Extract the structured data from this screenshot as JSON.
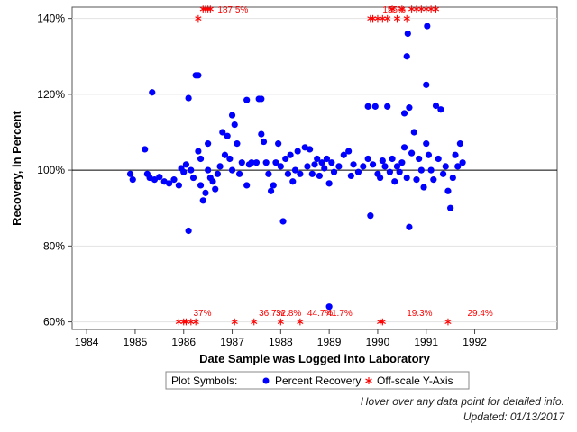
{
  "chart_data": {
    "type": "scatter",
    "title": "",
    "xlabel": "Date Sample was Logged into Laboratory",
    "ylabel": "Recovery, in Percent",
    "xlim": [
      1983.7,
      1993.7
    ],
    "ylim": [
      58,
      143
    ],
    "x_ticks": [
      "1984",
      "1985",
      "1986",
      "1987",
      "1988",
      "1989",
      "1990",
      "1991",
      "1992"
    ],
    "y_ticks": [
      "60%",
      "80%",
      "100%",
      "120%",
      "140%"
    ],
    "reference_line_y": 100,
    "grid": "horizontal",
    "legend_position": "bottom-center",
    "legend": {
      "title": "Plot Symbols:",
      "entries": [
        {
          "label": "Percent Recovery",
          "symbol": "filled-circle",
          "color": "#0000ff"
        },
        {
          "label": "Off-scale Y-Axis",
          "symbol": "asterisk",
          "color": "#ff0000"
        }
      ]
    },
    "series": [
      {
        "name": "Percent Recovery",
        "color": "#0000ff",
        "points": [
          [
            1984.9,
            99
          ],
          [
            1984.95,
            97.5
          ],
          [
            1985.2,
            105.5
          ],
          [
            1985.35,
            120.5
          ],
          [
            1985.25,
            99
          ],
          [
            1985.3,
            98
          ],
          [
            1985.4,
            97.5
          ],
          [
            1985.5,
            98.2
          ],
          [
            1985.6,
            97
          ],
          [
            1985.7,
            96.5
          ],
          [
            1985.8,
            97.5
          ],
          [
            1985.9,
            96
          ],
          [
            1985.95,
            100.5
          ],
          [
            1986.0,
            99.5
          ],
          [
            1986.05,
            101.5
          ],
          [
            1986.1,
            84
          ],
          [
            1986.1,
            119
          ],
          [
            1986.15,
            100
          ],
          [
            1986.2,
            98
          ],
          [
            1986.25,
            125
          ],
          [
            1986.3,
            125
          ],
          [
            1986.3,
            105
          ],
          [
            1986.35,
            103
          ],
          [
            1986.35,
            96
          ],
          [
            1986.4,
            92
          ],
          [
            1986.45,
            94
          ],
          [
            1986.5,
            100
          ],
          [
            1986.5,
            107
          ],
          [
            1986.55,
            98
          ],
          [
            1986.6,
            97
          ],
          [
            1986.65,
            95
          ],
          [
            1986.7,
            99
          ],
          [
            1986.75,
            101
          ],
          [
            1986.8,
            110
          ],
          [
            1986.85,
            104
          ],
          [
            1986.9,
            109
          ],
          [
            1986.95,
            103
          ],
          [
            1987.0,
            100
          ],
          [
            1987.0,
            114.5
          ],
          [
            1987.05,
            112
          ],
          [
            1987.1,
            107
          ],
          [
            1987.15,
            99
          ],
          [
            1987.2,
            102
          ],
          [
            1987.3,
            96
          ],
          [
            1987.3,
            118.5
          ],
          [
            1987.35,
            101.5
          ],
          [
            1987.4,
            102
          ],
          [
            1987.5,
            102
          ],
          [
            1987.55,
            118.8
          ],
          [
            1987.6,
            118.8
          ],
          [
            1987.6,
            109.5
          ],
          [
            1987.65,
            107.5
          ],
          [
            1987.7,
            102
          ],
          [
            1987.75,
            99
          ],
          [
            1987.8,
            94.5
          ],
          [
            1987.85,
            96
          ],
          [
            1987.9,
            102
          ],
          [
            1987.95,
            107
          ],
          [
            1988.0,
            101
          ],
          [
            1988.05,
            86.5
          ],
          [
            1988.1,
            103
          ],
          [
            1988.15,
            99
          ],
          [
            1988.2,
            104
          ],
          [
            1988.25,
            97
          ],
          [
            1988.3,
            100
          ],
          [
            1988.35,
            105
          ],
          [
            1988.4,
            99
          ],
          [
            1988.5,
            106
          ],
          [
            1988.55,
            101
          ],
          [
            1988.6,
            105.5
          ],
          [
            1988.65,
            99
          ],
          [
            1988.7,
            101.5
          ],
          [
            1988.75,
            103
          ],
          [
            1988.8,
            98.5
          ],
          [
            1988.85,
            102
          ],
          [
            1988.9,
            100.5
          ],
          [
            1988.95,
            103
          ],
          [
            1989.0,
            96.5
          ],
          [
            1989.0,
            64
          ],
          [
            1989.05,
            102
          ],
          [
            1989.1,
            99.5
          ],
          [
            1989.2,
            101
          ],
          [
            1989.3,
            104
          ],
          [
            1989.4,
            105
          ],
          [
            1989.45,
            98.5
          ],
          [
            1989.5,
            101.5
          ],
          [
            1989.6,
            99.5
          ],
          [
            1989.7,
            101
          ],
          [
            1989.8,
            103
          ],
          [
            1989.8,
            116.8
          ],
          [
            1989.85,
            88
          ],
          [
            1989.9,
            101.5
          ],
          [
            1989.95,
            116.8
          ],
          [
            1990.0,
            99
          ],
          [
            1990.05,
            98
          ],
          [
            1990.1,
            102.5
          ],
          [
            1990.15,
            101
          ],
          [
            1990.2,
            116.8
          ],
          [
            1990.25,
            99.5
          ],
          [
            1990.3,
            103
          ],
          [
            1990.35,
            97
          ],
          [
            1990.4,
            101
          ],
          [
            1990.45,
            99.5
          ],
          [
            1990.5,
            102
          ],
          [
            1990.55,
            115
          ],
          [
            1990.55,
            106
          ],
          [
            1990.6,
            98
          ],
          [
            1990.6,
            130
          ],
          [
            1990.62,
            136
          ],
          [
            1990.65,
            116.5
          ],
          [
            1990.65,
            85
          ],
          [
            1990.7,
            104.5
          ],
          [
            1990.75,
            110
          ],
          [
            1990.8,
            97.5
          ],
          [
            1990.85,
            103
          ],
          [
            1990.9,
            100
          ],
          [
            1990.95,
            95.5
          ],
          [
            1991.0,
            107
          ],
          [
            1991.0,
            122.5
          ],
          [
            1991.02,
            138
          ],
          [
            1991.05,
            104
          ],
          [
            1991.1,
            100
          ],
          [
            1991.15,
            97.5
          ],
          [
            1991.2,
            117
          ],
          [
            1991.25,
            103
          ],
          [
            1991.3,
            116
          ],
          [
            1991.35,
            99
          ],
          [
            1991.4,
            101
          ],
          [
            1991.45,
            94.5
          ],
          [
            1991.5,
            90
          ],
          [
            1991.55,
            98
          ],
          [
            1991.6,
            104
          ],
          [
            1991.65,
            101
          ],
          [
            1991.7,
            107
          ],
          [
            1991.75,
            102
          ]
        ]
      },
      {
        "name": "Off-scale Y-Axis",
        "color": "#ff0000",
        "points": [
          [
            1986.3,
            140
          ],
          [
            1986.4,
            142.5
          ],
          [
            1986.45,
            142.5
          ],
          [
            1986.5,
            142.5
          ],
          [
            1986.55,
            142.5
          ],
          [
            1989.85,
            140
          ],
          [
            1989.9,
            140
          ],
          [
            1990.0,
            140
          ],
          [
            1990.1,
            140
          ],
          [
            1990.2,
            140
          ],
          [
            1990.3,
            142.5
          ],
          [
            1990.4,
            140
          ],
          [
            1990.5,
            142.5
          ],
          [
            1990.6,
            140
          ],
          [
            1990.7,
            142.5
          ],
          [
            1990.8,
            142.5
          ],
          [
            1990.9,
            142.5
          ],
          [
            1991.0,
            142.5
          ],
          [
            1991.1,
            142.5
          ],
          [
            1991.2,
            142.5
          ],
          [
            1985.9,
            60
          ],
          [
            1986.0,
            60
          ],
          [
            1986.05,
            60
          ],
          [
            1986.15,
            60
          ],
          [
            1986.25,
            60
          ],
          [
            1987.05,
            60
          ],
          [
            1987.45,
            60
          ],
          [
            1988.0,
            60
          ],
          [
            1988.4,
            60
          ],
          [
            1990.05,
            60
          ],
          [
            1990.1,
            60
          ],
          [
            1991.45,
            60
          ]
        ]
      }
    ],
    "annotations": [
      {
        "text": "37%",
        "x": 1986.2,
        "y": 62.5
      },
      {
        "text": "36.7%",
        "x": 1987.55,
        "y": 62.5
      },
      {
        "text": "32.8%",
        "x": 1987.9,
        "y": 62.5
      },
      {
        "text": "44.7%",
        "x": 1988.55,
        "y": 62.5
      },
      {
        "text": "41.7%",
        "x": 1988.95,
        "y": 62.5
      },
      {
        "text": "19.3%",
        "x": 1990.6,
        "y": 62.5
      },
      {
        "text": "29.4%",
        "x": 1991.85,
        "y": 62.5
      },
      {
        "text": "187.5%",
        "x": 1986.7,
        "y": 142.5
      },
      {
        "text": "155%",
        "x": 1990.1,
        "y": 142.5
      }
    ]
  },
  "footnotes": {
    "hover_hint": "Hover over any data point for detailed info.",
    "updated": "Updated: 01/13/2017"
  }
}
